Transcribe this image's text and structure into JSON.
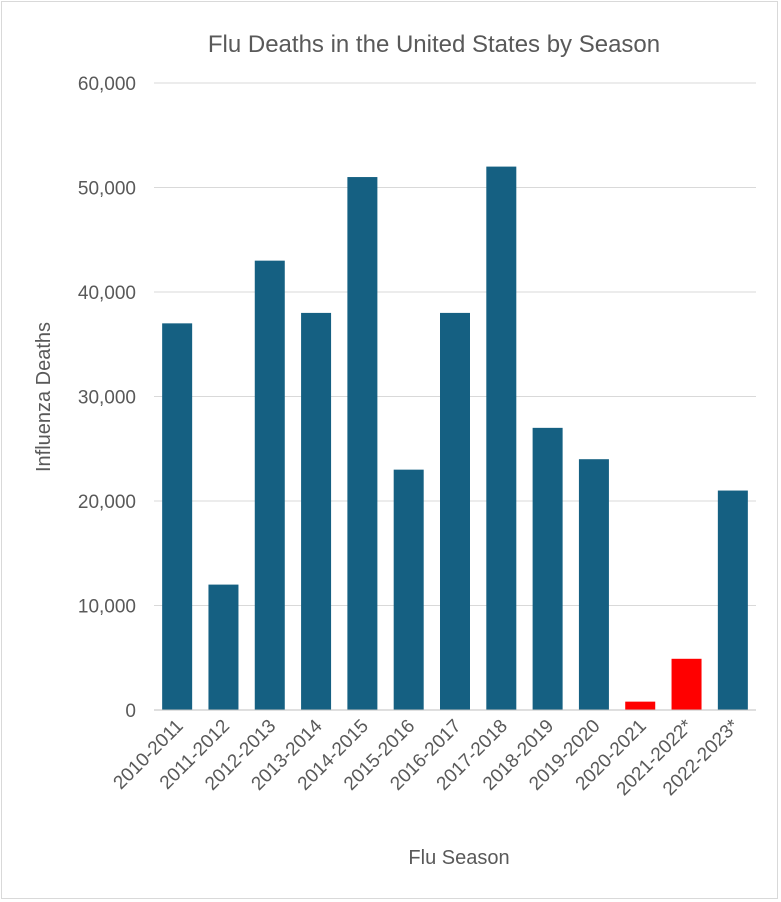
{
  "chart_data": {
    "type": "bar",
    "title": "Flu Deaths in the United States by Season",
    "xlabel": "Flu Season",
    "ylabel": "Influenza Deaths",
    "ylim": [
      0,
      60000
    ],
    "yticks": [
      0,
      10000,
      20000,
      30000,
      40000,
      50000,
      60000
    ],
    "ytick_labels": [
      "0",
      "10,000",
      "20,000",
      "30,000",
      "40,000",
      "50,000",
      "60,000"
    ],
    "grid": true,
    "categories": [
      "2010-2011",
      "2011-2012",
      "2012-2013",
      "2013-2014",
      "2014-2015",
      "2015-2016",
      "2016-2017",
      "2017-2018",
      "2018-2019",
      "2019-2020",
      "2020-2021",
      "2021-2022*",
      "2022-2023*"
    ],
    "values": [
      37000,
      12000,
      43000,
      38000,
      51000,
      23000,
      38000,
      52000,
      27000,
      24000,
      800,
      4900,
      21000
    ],
    "colors": [
      "#156082",
      "#156082",
      "#156082",
      "#156082",
      "#156082",
      "#156082",
      "#156082",
      "#156082",
      "#156082",
      "#156082",
      "#ff0000",
      "#ff0000",
      "#156082"
    ]
  }
}
